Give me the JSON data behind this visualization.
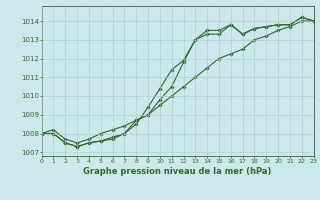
{
  "title": "Graphe pression niveau de la mer (hPa)",
  "bg_color": "#cce8ea",
  "grid_color": "#a8cccc",
  "line_color": "#2d6a2d",
  "xlim": [
    0,
    23
  ],
  "ylim": [
    1006.8,
    1014.8
  ],
  "yticks": [
    1007,
    1008,
    1009,
    1010,
    1011,
    1012,
    1013,
    1014
  ],
  "xticks": [
    0,
    1,
    2,
    3,
    4,
    5,
    6,
    7,
    8,
    9,
    10,
    11,
    12,
    13,
    14,
    15,
    16,
    17,
    18,
    19,
    20,
    21,
    22,
    23
  ],
  "line1_y": [
    1008.0,
    1008.0,
    1007.5,
    1007.3,
    1007.5,
    1007.6,
    1007.7,
    1008.0,
    1008.5,
    1009.4,
    1010.4,
    1011.4,
    1011.9,
    1013.0,
    1013.5,
    1013.5,
    1013.8,
    1013.3,
    1013.6,
    1013.7,
    1013.8,
    1013.8,
    1014.2,
    1014.0
  ],
  "line2_y": [
    1008.0,
    1008.0,
    1007.5,
    1007.3,
    1007.5,
    1007.6,
    1007.8,
    1008.0,
    1008.7,
    1009.0,
    1009.8,
    1010.5,
    1011.8,
    1013.0,
    1013.3,
    1013.3,
    1013.8,
    1013.3,
    1013.6,
    1013.7,
    1013.8,
    1013.8,
    1014.2,
    1014.0
  ],
  "line3_y": [
    1008.0,
    1008.2,
    1007.7,
    1007.5,
    1007.7,
    1008.0,
    1008.2,
    1008.4,
    1008.7,
    1009.0,
    1009.5,
    1010.0,
    1010.5,
    1011.0,
    1011.5,
    1012.0,
    1012.25,
    1012.5,
    1013.0,
    1013.2,
    1013.5,
    1013.7,
    1014.0,
    1014.0
  ],
  "figsize": [
    3.2,
    2.0
  ],
  "dpi": 100
}
